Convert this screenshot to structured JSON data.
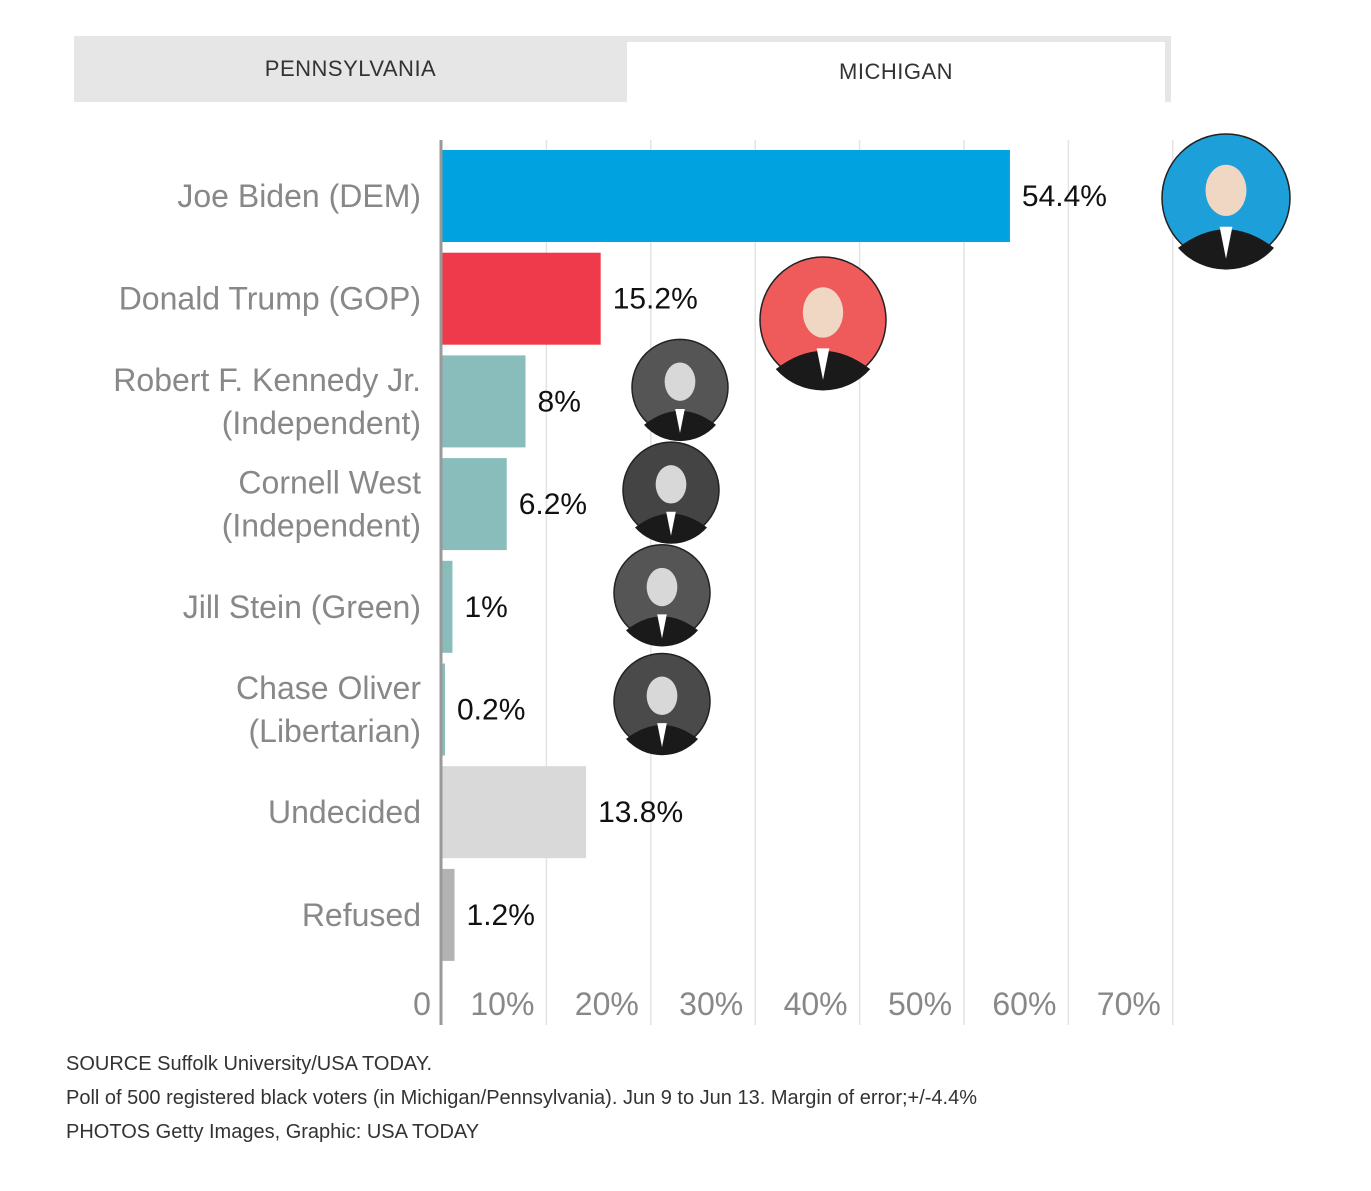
{
  "tabs": [
    {
      "label": "PENNSYLVANIA",
      "active": false
    },
    {
      "label": "MICHIGAN",
      "active": true
    }
  ],
  "chart_data": {
    "type": "bar",
    "orientation": "horizontal",
    "title": "",
    "xlabel": "",
    "ylabel": "",
    "xlim": [
      0,
      70
    ],
    "ticks": [
      0,
      10,
      20,
      30,
      40,
      50,
      60,
      70
    ],
    "tick_labels": [
      "0",
      "10%",
      "20%",
      "30%",
      "40%",
      "50%",
      "60%",
      "70%"
    ],
    "grid": true,
    "categories": [
      {
        "label_lines": [
          "Joe Biden (DEM)"
        ],
        "value": 54.4,
        "value_label": "54.4%",
        "color": "#00a3e0",
        "photo": "biden-photo",
        "photo_bg": "#1d9fd9"
      },
      {
        "label_lines": [
          "Donald Trump (GOP)"
        ],
        "value": 15.2,
        "value_label": "15.2%",
        "color": "#ee3a4a",
        "photo": "trump-photo",
        "photo_bg": "#ef5b5b"
      },
      {
        "label_lines": [
          "Robert F. Kennedy Jr.",
          "(Independent)"
        ],
        "value": 8,
        "value_label": "8%",
        "color": "#88bdbc",
        "photo": "kennedy-photo",
        "photo_bg": "#555555"
      },
      {
        "label_lines": [
          "Cornell West",
          "(Independent)"
        ],
        "value": 6.2,
        "value_label": "6.2%",
        "color": "#88bdbc",
        "photo": "west-photo",
        "photo_bg": "#444444"
      },
      {
        "label_lines": [
          "Jill Stein (Green)"
        ],
        "value": 1,
        "value_label": "1%",
        "color": "#88bdbc",
        "photo": "stein-photo",
        "photo_bg": "#555555"
      },
      {
        "label_lines": [
          "Chase Oliver",
          "(Libertarian)"
        ],
        "value": 0.2,
        "value_label": "0.2%",
        "color": "#88bdbc",
        "photo": "oliver-photo",
        "photo_bg": "#4a4a4a"
      },
      {
        "label_lines": [
          "Undecided"
        ],
        "value": 13.8,
        "value_label": "13.8%",
        "color": "#d9d9d9",
        "photo": null
      },
      {
        "label_lines": [
          "Refused"
        ],
        "value": 1.2,
        "value_label": "1.2%",
        "color": "#b3b3b3",
        "photo": null
      }
    ]
  },
  "footer": {
    "source": "SOURCE Suffolk University/USA TODAY.",
    "note": "Poll of 500  registered black voters (in Michigan/Pennsylvania). Jun 9 to Jun 13. Margin of error;+/-4.4%",
    "credits": "PHOTOS Getty Images, Graphic: USA TODAY"
  },
  "colors": {
    "axis_text": "#888888",
    "grid": "#e3e3e3",
    "axis": "#999999",
    "value_text": "#111111"
  }
}
